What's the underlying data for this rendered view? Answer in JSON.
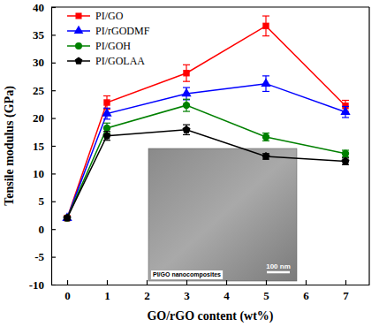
{
  "chart_data": {
    "type": "line",
    "x_label": "GO/rGO content (wt%)",
    "y_label": "Tensile modulus (GPa)",
    "x": [
      0,
      1,
      3,
      5,
      7
    ],
    "xlim": [
      -0.4,
      7.6
    ],
    "xticks": [
      0,
      1,
      2,
      3,
      4,
      5,
      6,
      7
    ],
    "ylim": [
      -10,
      40
    ],
    "yticks": [
      -10,
      -5,
      0,
      5,
      10,
      15,
      20,
      25,
      30,
      35,
      40
    ],
    "grid": false,
    "legend": "upper left",
    "annotations": [
      "PI/GO nanocomposites",
      "100 nm"
    ],
    "series": [
      {
        "name": "PI/GO",
        "color": "#ff0000",
        "marker": "square",
        "values": [
          2.0,
          22.8,
          28.1,
          36.6,
          22.2
        ],
        "errors": [
          0.3,
          1.2,
          1.5,
          1.8,
          1.0
        ]
      },
      {
        "name": "PI/rGODMF",
        "color": "#0000ff",
        "marker": "triangle",
        "values": [
          2.0,
          20.8,
          24.4,
          26.2,
          21.1
        ],
        "errors": [
          0.3,
          1.0,
          1.1,
          1.4,
          1.0
        ]
      },
      {
        "name": "PI/GOH",
        "color": "#008000",
        "marker": "circle",
        "values": [
          2.0,
          18.2,
          22.3,
          16.6,
          13.6
        ],
        "errors": [
          0.3,
          0.9,
          1.1,
          0.7,
          0.6
        ]
      },
      {
        "name": "PI/GOLAA",
        "color": "#000000",
        "marker": "pentagon",
        "values": [
          2.0,
          16.8,
          17.9,
          13.1,
          12.2
        ],
        "errors": [
          0.3,
          0.8,
          0.9,
          0.5,
          0.6
        ]
      }
    ]
  }
}
